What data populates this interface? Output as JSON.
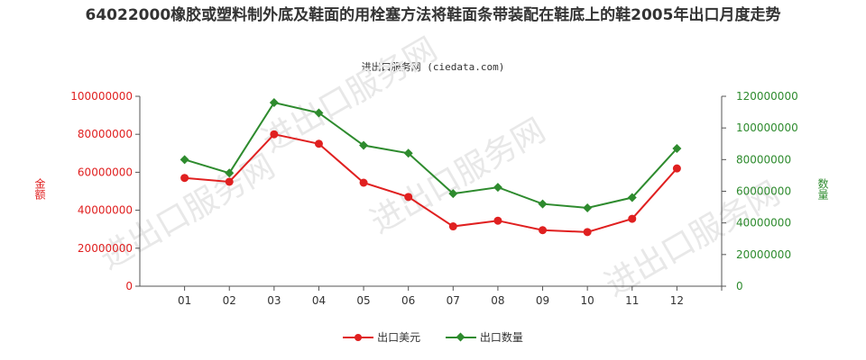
{
  "title": "64022000橡胶或塑料制外底及鞋面的用栓塞方法将鞋面条带装配在鞋底上的鞋2005年出口月度走势",
  "source": "进出口服务网 (ciedata.com)",
  "watermark": "进出口服务网",
  "colors": {
    "left": "#e02020",
    "right": "#2e8b2e",
    "axis": "#555555"
  },
  "chart_data": {
    "type": "line",
    "title": "64022000橡胶或塑料制外底及鞋面的用栓塞方法将鞋面条带装配在鞋底上的鞋2005年出口月度走势",
    "categories": [
      "01",
      "02",
      "03",
      "04",
      "05",
      "06",
      "07",
      "08",
      "09",
      "10",
      "11",
      "12"
    ],
    "y_left": {
      "label": "金额",
      "ylim": [
        0,
        100000000
      ],
      "ticks": [
        "0",
        "20000000",
        "40000000",
        "60000000",
        "80000000",
        "100000000"
      ]
    },
    "y_right": {
      "label": "数量",
      "ylim": [
        0,
        120000000
      ],
      "ticks": [
        "0",
        "20000000",
        "40000000",
        "60000000",
        "80000000",
        "100000000",
        "120000000"
      ]
    },
    "series": [
      {
        "name": "出口美元",
        "axis": "left",
        "color": "#e02020",
        "marker": "circle",
        "values": [
          57000000,
          55000000,
          80000000,
          75000000,
          54500000,
          47000000,
          31500000,
          34500000,
          29500000,
          28500000,
          35500000,
          62000000
        ]
      },
      {
        "name": "出口数量",
        "axis": "right",
        "color": "#2e8b2e",
        "marker": "diamond",
        "values": [
          80000000,
          71500000,
          116000000,
          109500000,
          89000000,
          84000000,
          58500000,
          62500000,
          52000000,
          49500000,
          56000000,
          87000000
        ]
      }
    ],
    "legend": "bottom"
  }
}
